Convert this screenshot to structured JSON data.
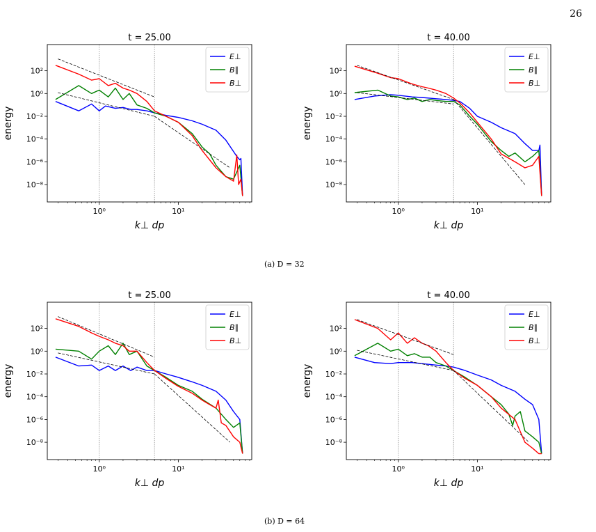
{
  "page_number": "26",
  "subcaptions": [
    "(a) D = 32",
    "(b) D = 64"
  ],
  "colors": {
    "E_perp": "#0000ff",
    "B_par": "#008000",
    "B_perp": "#ff0000",
    "fit": "#000000",
    "vline": "#888888"
  },
  "chart_data": [
    {
      "type": "line",
      "title": "t = 25.00",
      "xlabel": "k⊥ dp",
      "ylabel": "energy",
      "xscale": "log",
      "yscale": "log",
      "xlim": [
        0.22,
        85
      ],
      "ylim": [
        3e-10,
        20000
      ],
      "xticks": [
        {
          "v": 1,
          "label": "10⁰"
        },
        {
          "v": 10,
          "label": "10¹"
        }
      ],
      "yticks": [
        {
          "v": 100,
          "label": "10²"
        },
        {
          "v": 1,
          "label": "10⁰"
        },
        {
          "v": 0.01,
          "label": "10⁻²"
        },
        {
          "v": 0.0001,
          "label": "10⁻⁴"
        },
        {
          "v": 1e-06,
          "label": "10⁻⁶"
        },
        {
          "v": 1e-08,
          "label": "10⁻⁸"
        }
      ],
      "vlines": [
        1,
        5
      ],
      "legend": [
        "E⊥",
        "B∥",
        "B⊥"
      ],
      "legend_position": "top-right",
      "series": [
        {
          "name": "E⊥",
          "color": "#0000ff",
          "x": [
            0.28,
            0.55,
            0.8,
            1.0,
            1.2,
            1.6,
            2,
            2.5,
            3,
            4,
            5,
            7,
            10,
            15,
            20,
            30,
            40,
            55,
            60,
            62,
            65
          ],
          "y": [
            0.2,
            0.03,
            0.12,
            0.03,
            0.08,
            0.05,
            0.06,
            0.04,
            0.04,
            0.03,
            0.02,
            0.012,
            0.008,
            0.004,
            0.002,
            0.0006,
            8e-05,
            3e-06,
            1.5e-06,
            2e-06,
            1e-09
          ]
        },
        {
          "name": "B∥",
          "color": "#008000",
          "x": [
            0.28,
            0.55,
            0.8,
            1.0,
            1.3,
            1.6,
            2,
            2.4,
            3,
            4,
            5,
            7,
            10,
            15,
            20,
            25,
            30,
            40,
            50,
            60,
            65
          ],
          "y": [
            0.3,
            5,
            1,
            2,
            0.5,
            3,
            0.3,
            1,
            0.1,
            0.05,
            0.02,
            0.01,
            0.003,
            0.0003,
            2e-05,
            5e-06,
            5e-07,
            5e-08,
            3e-08,
            5e-07,
            1e-09
          ]
        },
        {
          "name": "B⊥",
          "color": "#ff0000",
          "x": [
            0.28,
            0.55,
            0.8,
            1.0,
            1.3,
            1.6,
            2,
            2.4,
            3,
            4,
            5,
            7,
            10,
            15,
            20,
            30,
            40,
            50,
            55,
            58,
            62,
            65
          ],
          "y": [
            300,
            50,
            15,
            20,
            5,
            8,
            3,
            2,
            1,
            0.2,
            0.03,
            0.01,
            0.003,
            0.0002,
            1e-05,
            3e-07,
            5e-08,
            2e-08,
            4e-06,
            1e-08,
            3e-08,
            1e-09
          ]
        }
      ],
      "fit_lines": [
        {
          "x": [
            0.3,
            5
          ],
          "y": [
            1100,
            0.5
          ]
        },
        {
          "x": [
            0.3,
            5
          ],
          "y": [
            1.2,
            0.01
          ]
        },
        {
          "x": [
            5,
            45
          ],
          "y": [
            0.01,
            3e-07
          ]
        }
      ]
    },
    {
      "type": "line",
      "title": "t = 40.00",
      "xlabel": "k⊥ dp",
      "ylabel": "energy",
      "xscale": "log",
      "yscale": "log",
      "xlim": [
        0.22,
        85
      ],
      "ylim": [
        3e-10,
        20000
      ],
      "xticks": [
        {
          "v": 1,
          "label": "10⁰"
        },
        {
          "v": 10,
          "label": "10¹"
        }
      ],
      "yticks": [
        {
          "v": 100,
          "label": "10²"
        },
        {
          "v": 1,
          "label": "10⁰"
        },
        {
          "v": 0.01,
          "label": "10⁻²"
        },
        {
          "v": 0.0001,
          "label": "10⁻⁴"
        },
        {
          "v": 1e-06,
          "label": "10⁻⁶"
        },
        {
          "v": 1e-08,
          "label": "10⁻⁸"
        }
      ],
      "vlines": [
        1,
        5
      ],
      "legend": [
        "E⊥",
        "B∥",
        "B⊥"
      ],
      "legend_position": "top-right",
      "series": [
        {
          "name": "E⊥",
          "color": "#0000ff",
          "x": [
            0.28,
            0.5,
            0.8,
            1.0,
            1.5,
            2,
            3,
            4,
            5,
            6,
            8,
            10,
            15,
            20,
            30,
            40,
            50,
            60,
            62,
            65
          ],
          "y": [
            0.3,
            0.6,
            0.8,
            0.7,
            0.5,
            0.45,
            0.35,
            0.3,
            0.25,
            0.2,
            0.05,
            0.01,
            0.003,
            0.001,
            0.0003,
            4e-05,
            1e-05,
            1e-05,
            3e-05,
            1e-09
          ]
        },
        {
          "name": "B∥",
          "color": "#008000",
          "x": [
            0.28,
            0.55,
            0.8,
            1.0,
            1.3,
            1.6,
            2,
            2.5,
            3,
            4,
            5,
            6,
            8,
            10,
            15,
            20,
            25,
            30,
            40,
            50,
            60,
            65
          ],
          "y": [
            1.2,
            2,
            0.6,
            0.5,
            0.3,
            0.4,
            0.2,
            0.3,
            0.25,
            0.2,
            0.2,
            0.1,
            0.01,
            0.002,
            6e-05,
            1e-05,
            3e-06,
            6e-06,
            1e-06,
            3e-06,
            1e-05,
            1e-09
          ]
        },
        {
          "name": "B⊥",
          "color": "#ff0000",
          "x": [
            0.28,
            0.55,
            0.8,
            1.0,
            1.3,
            1.6,
            2,
            2.4,
            3,
            4,
            5,
            6,
            8,
            10,
            15,
            20,
            30,
            40,
            50,
            60,
            65
          ],
          "y": [
            250,
            60,
            25,
            20,
            10,
            6,
            4,
            3,
            2,
            1,
            0.4,
            0.15,
            0.02,
            0.003,
            0.0001,
            5e-06,
            1e-06,
            3e-07,
            5e-07,
            3e-06,
            1e-09
          ]
        }
      ],
      "fit_lines": [
        {
          "x": [
            0.3,
            5
          ],
          "y": [
            300,
            0.3
          ]
        },
        {
          "x": [
            0.3,
            5
          ],
          "y": [
            1.2,
            0.12
          ]
        },
        {
          "x": [
            5,
            40
          ],
          "y": [
            0.3,
            1e-08
          ]
        }
      ]
    },
    {
      "type": "line",
      "title": "t = 25.00",
      "xlabel": "k⊥ dp",
      "ylabel": "energy",
      "xscale": "log",
      "yscale": "log",
      "xlim": [
        0.22,
        85
      ],
      "ylim": [
        3e-10,
        20000
      ],
      "xticks": [
        {
          "v": 1,
          "label": "10⁰"
        },
        {
          "v": 10,
          "label": "10¹"
        }
      ],
      "yticks": [
        {
          "v": 100,
          "label": "10²"
        },
        {
          "v": 1,
          "label": "10⁰"
        },
        {
          "v": 0.01,
          "label": "10⁻²"
        },
        {
          "v": 0.0001,
          "label": "10⁻⁴"
        },
        {
          "v": 1e-06,
          "label": "10⁻⁶"
        },
        {
          "v": 1e-08,
          "label": "10⁻⁸"
        }
      ],
      "vlines": [
        1,
        5
      ],
      "legend": [
        "E⊥",
        "B∥",
        "B⊥"
      ],
      "legend_position": "top-right",
      "series": [
        {
          "name": "E⊥",
          "color": "#0000ff",
          "x": [
            0.28,
            0.55,
            0.8,
            1.0,
            1.3,
            1.6,
            2,
            2.5,
            3,
            4,
            5,
            7,
            10,
            15,
            20,
            30,
            40,
            50,
            60,
            65
          ],
          "y": [
            0.3,
            0.05,
            0.06,
            0.02,
            0.05,
            0.02,
            0.05,
            0.02,
            0.04,
            0.02,
            0.02,
            0.01,
            0.005,
            0.002,
            0.001,
            0.0003,
            5e-05,
            5e-06,
            1e-06,
            1e-09
          ]
        },
        {
          "name": "B∥",
          "color": "#008000",
          "x": [
            0.28,
            0.55,
            0.8,
            1.0,
            1.3,
            1.6,
            2,
            2.4,
            3,
            4,
            5,
            7,
            10,
            15,
            20,
            30,
            40,
            50,
            60,
            65
          ],
          "y": [
            1.5,
            1,
            0.2,
            1,
            3,
            0.5,
            5,
            0.5,
            1,
            0.05,
            0.02,
            0.005,
            0.001,
            0.0003,
            6e-05,
            1e-05,
            1e-06,
            2e-07,
            5e-07,
            1e-09
          ]
        },
        {
          "name": "B⊥",
          "color": "#ff0000",
          "x": [
            0.28,
            0.55,
            0.8,
            1.0,
            1.3,
            1.6,
            2,
            2.4,
            3,
            4,
            5,
            7,
            10,
            15,
            20,
            25,
            30,
            32,
            35,
            40,
            50,
            60,
            65
          ],
          "y": [
            700,
            150,
            40,
            20,
            10,
            5,
            3,
            1,
            1,
            0.1,
            0.02,
            0.004,
            0.0008,
            0.0002,
            5e-05,
            2e-05,
            1e-05,
            5e-05,
            5e-07,
            3e-07,
            3e-08,
            1e-08,
            1e-09
          ]
        }
      ],
      "fit_lines": [
        {
          "x": [
            0.3,
            5
          ],
          "y": [
            1100,
            0.3
          ]
        },
        {
          "x": [
            0.3,
            5
          ],
          "y": [
            0.7,
            0.01
          ]
        },
        {
          "x": [
            5,
            45
          ],
          "y": [
            0.01,
            1e-08
          ]
        }
      ]
    },
    {
      "type": "line",
      "title": "t = 40.00",
      "xlabel": "k⊥ dp",
      "ylabel": "energy",
      "xscale": "log",
      "yscale": "log",
      "xlim": [
        0.22,
        85
      ],
      "ylim": [
        3e-10,
        20000
      ],
      "xticks": [
        {
          "v": 1,
          "label": "10⁰"
        },
        {
          "v": 10,
          "label": "10¹"
        }
      ],
      "yticks": [
        {
          "v": 100,
          "label": "10²"
        },
        {
          "v": 1,
          "label": "10⁰"
        },
        {
          "v": 0.01,
          "label": "10⁻²"
        },
        {
          "v": 0.0001,
          "label": "10⁻⁴"
        },
        {
          "v": 1e-06,
          "label": "10⁻⁶"
        },
        {
          "v": 1e-08,
          "label": "10⁻⁸"
        }
      ],
      "vlines": [
        1,
        5
      ],
      "legend": [
        "E⊥",
        "B∥",
        "B⊥"
      ],
      "legend_position": "top-right",
      "series": [
        {
          "name": "E⊥",
          "color": "#0000ff",
          "x": [
            0.28,
            0.5,
            0.8,
            1.0,
            1.5,
            2,
            3,
            4,
            5,
            7,
            10,
            15,
            20,
            30,
            40,
            50,
            60,
            65
          ],
          "y": [
            0.3,
            0.1,
            0.08,
            0.1,
            0.1,
            0.08,
            0.06,
            0.05,
            0.04,
            0.02,
            0.008,
            0.003,
            0.001,
            0.0003,
            6e-05,
            2e-05,
            1e-06,
            1e-09
          ]
        },
        {
          "name": "B∥",
          "color": "#008000",
          "x": [
            0.28,
            0.55,
            0.8,
            1.0,
            1.3,
            1.6,
            2,
            2.5,
            3,
            4,
            5,
            7,
            10,
            15,
            20,
            25,
            28,
            30,
            35,
            40,
            50,
            60,
            65
          ],
          "y": [
            0.4,
            5,
            1,
            1.5,
            0.4,
            0.6,
            0.3,
            0.3,
            0.1,
            0.05,
            0.02,
            0.005,
            0.001,
            0.0001,
            2e-05,
            3e-06,
            3e-07,
            2e-06,
            5e-06,
            1e-07,
            3e-08,
            1e-08,
            1e-09
          ]
        },
        {
          "name": "B⊥",
          "color": "#ff0000",
          "x": [
            0.28,
            0.55,
            0.8,
            1.0,
            1.3,
            1.6,
            2,
            2.4,
            3,
            4,
            5,
            7,
            10,
            15,
            20,
            30,
            40,
            50,
            60,
            65
          ],
          "y": [
            600,
            100,
            10,
            40,
            5,
            15,
            5,
            3,
            1,
            0.1,
            0.02,
            0.004,
            0.001,
            0.0001,
            1e-05,
            1e-06,
            1e-08,
            3e-09,
            1e-09,
            1e-09
          ]
        }
      ],
      "fit_lines": [
        {
          "x": [
            0.3,
            5
          ],
          "y": [
            600,
            0.5
          ]
        },
        {
          "x": [
            0.3,
            5
          ],
          "y": [
            1.2,
            0.02
          ]
        },
        {
          "x": [
            5,
            45
          ],
          "y": [
            0.02,
            1e-08
          ]
        }
      ]
    }
  ]
}
